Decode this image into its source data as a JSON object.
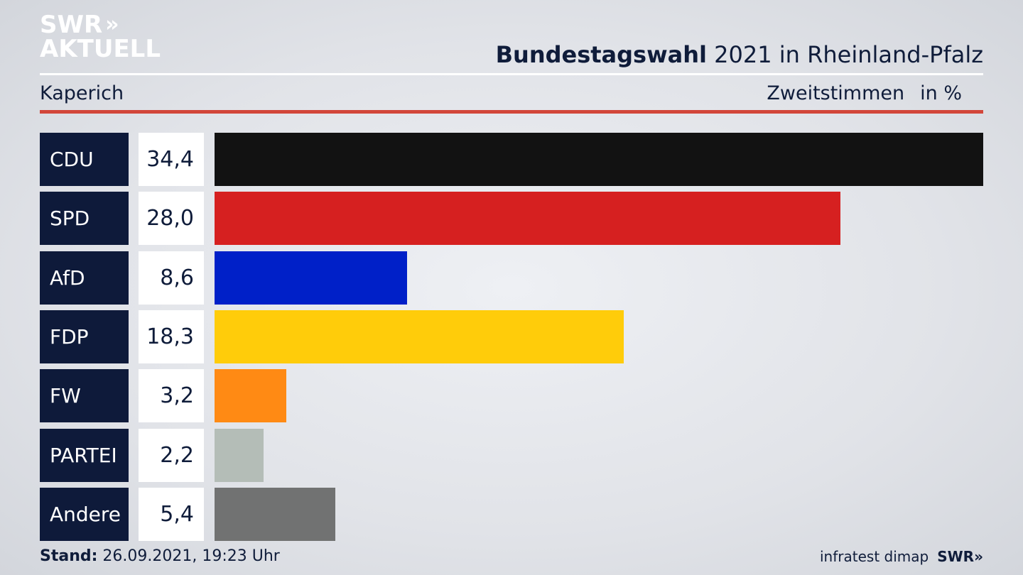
{
  "brand": {
    "line1": "SWR",
    "line1_chevron": "»",
    "line2": "AKTUELL"
  },
  "header": {
    "title_bold": "Bundestagswahl",
    "title_rest": "2021 in Rheinland-Pfalz",
    "location": "Kaperich",
    "measure": "Zweitstimmen",
    "unit": "in %"
  },
  "chart_data": {
    "type": "bar",
    "orientation": "horizontal",
    "categories": [
      "CDU",
      "SPD",
      "AfD",
      "FDP",
      "FW",
      "PARTEI",
      "Andere"
    ],
    "values": [
      34.4,
      28.0,
      8.6,
      18.3,
      3.2,
      2.2,
      5.4
    ],
    "value_labels": [
      "34,4",
      "28,0",
      "8,6",
      "18,3",
      "3,2",
      "2,2",
      "5,4"
    ],
    "colors": [
      "#121212",
      "#d62020",
      "#0020c8",
      "#ffcc0a",
      "#ff8a14",
      "#b4bdb7",
      "#717272"
    ],
    "xlim": [
      0,
      34.4
    ]
  },
  "footer": {
    "stand_label": "Stand:",
    "stand_value": "26.09.2021, 19:23 Uhr",
    "source": "infratest dimap",
    "source_brand": "SWR»"
  }
}
